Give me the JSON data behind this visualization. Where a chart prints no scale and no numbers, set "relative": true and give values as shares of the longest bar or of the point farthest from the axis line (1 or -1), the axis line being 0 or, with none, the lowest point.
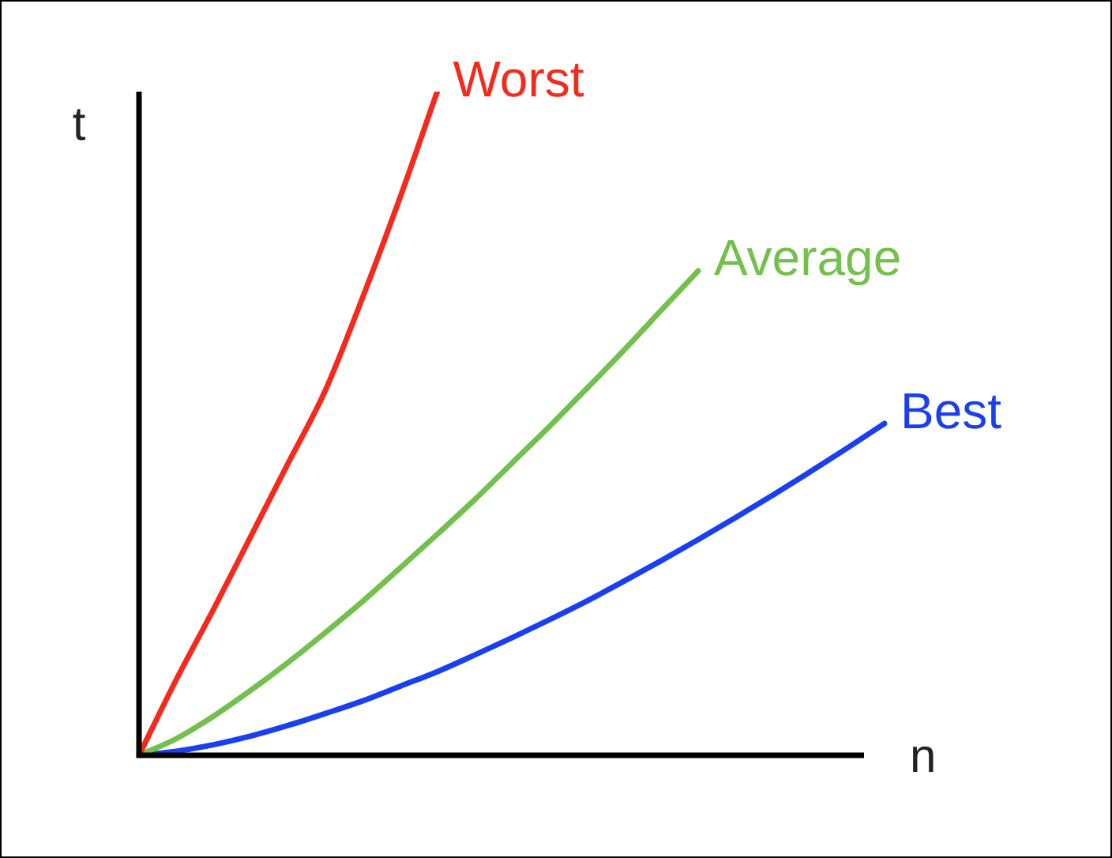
{
  "chart_data": {
    "type": "line",
    "relative": true,
    "xlabel": "n",
    "ylabel": "t",
    "legend": false,
    "marker": "none",
    "line_style": "solid",
    "categories": [
      null,
      null,
      null,
      null,
      null,
      null,
      null,
      null,
      null,
      null,
      null,
      null,
      null,
      null,
      null,
      null,
      null,
      null,
      null,
      null,
      null
    ],
    "series": [
      {
        "name": "Worst",
        "color": "#f5291c",
        "values": [
          0,
          0.114,
          0.22,
          0.33,
          0.44,
          0.55,
          0.69,
          0.84,
          1,
          null,
          null,
          null,
          null,
          null,
          null,
          null,
          null,
          null,
          null,
          null,
          null
        ]
      },
      {
        "name": "Average",
        "color": "#74c04c",
        "values": [
          0,
          0.025,
          0.059,
          0.098,
          0.14,
          0.185,
          0.232,
          0.282,
          0.333,
          0.385,
          0.44,
          0.495,
          0.552,
          0.61,
          0.67,
          0.73,
          null,
          null,
          null,
          null,
          null
        ]
      },
      {
        "name": "Best",
        "color": "#1a3ff0",
        "values": [
          0,
          0.006,
          0.016,
          0.029,
          0.045,
          0.063,
          0.082,
          0.104,
          0.126,
          0.151,
          0.177,
          0.204,
          0.232,
          0.262,
          0.293,
          0.325,
          0.358,
          0.392,
          0.427,
          0.463,
          0.5
        ]
      }
    ]
  }
}
